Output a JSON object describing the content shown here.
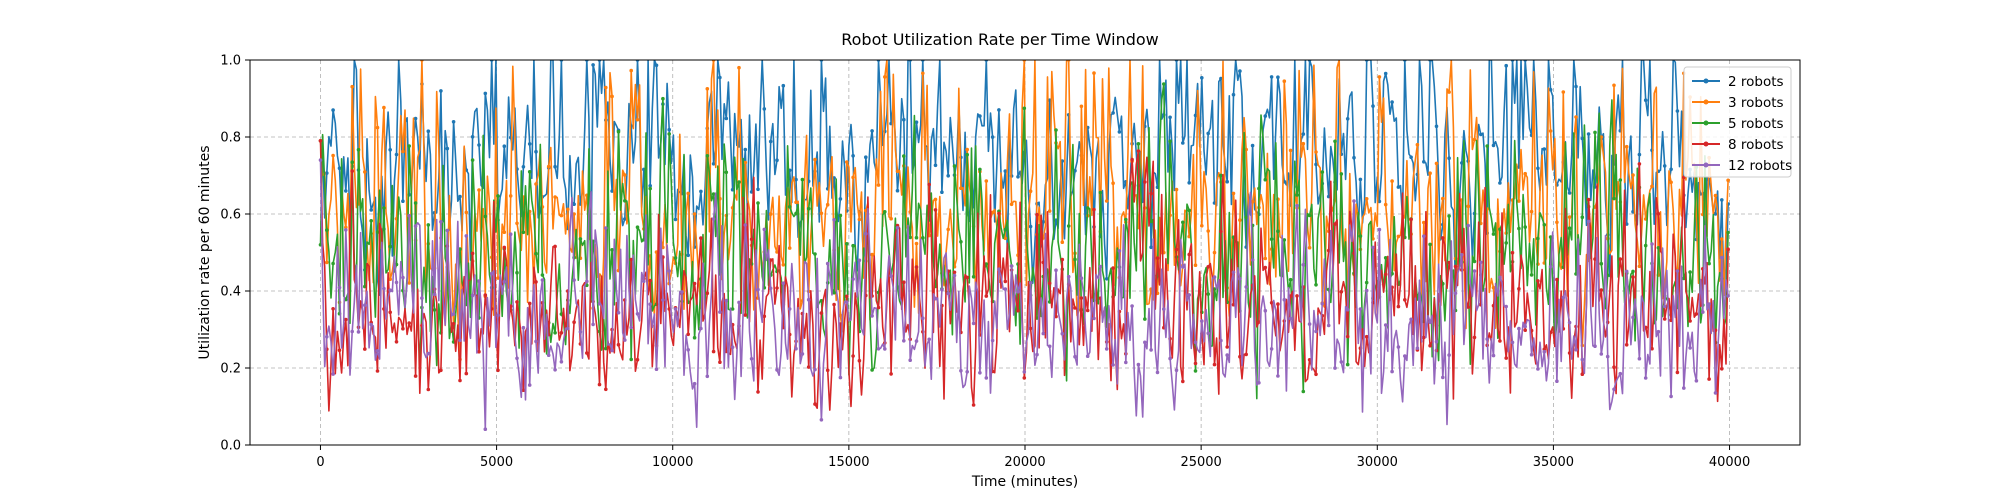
{
  "chart_data": {
    "type": "line",
    "title": "Robot Utilization Rate per Time Window",
    "xlabel": "Time (minutes)",
    "ylabel": "Utilization rate per 60 minutes",
    "xlim": [
      -2000,
      42000
    ],
    "ylim": [
      0.0,
      1.0
    ],
    "xticks": [
      0,
      5000,
      10000,
      15000,
      20000,
      25000,
      30000,
      35000,
      40000
    ],
    "yticks": [
      0.0,
      0.2,
      0.4,
      0.6,
      0.8,
      1.0
    ],
    "x_start": 0,
    "x_end": 40000,
    "x_step": 60,
    "grid": true,
    "legend_position": "top-right",
    "series": [
      {
        "name": "2 robots",
        "color": "#1f77b4",
        "level": 0.72,
        "spread": 0.42,
        "start": 0.79
      },
      {
        "name": "3 robots",
        "color": "#ff7f0e",
        "level": 0.58,
        "spread": 0.45,
        "start": 0.79
      },
      {
        "name": "5 robots",
        "color": "#2ca02c",
        "level": 0.44,
        "spread": 0.4,
        "start": 0.52
      },
      {
        "name": "8 robots",
        "color": "#d62728",
        "level": 0.34,
        "spread": 0.34,
        "start": 0.79
      },
      {
        "name": "12 robots",
        "color": "#9467bd",
        "level": 0.3,
        "spread": 0.3,
        "start": 0.74
      }
    ]
  }
}
